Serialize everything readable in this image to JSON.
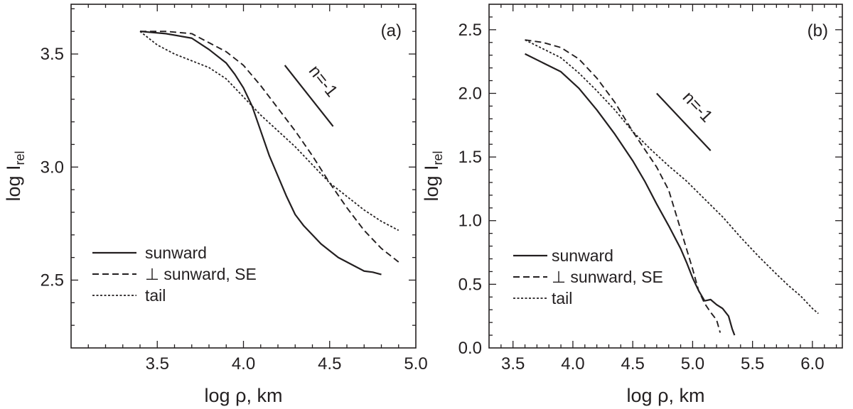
{
  "chart_data": [
    {
      "type": "line",
      "panel_label": "(a)",
      "xlabel": "log ρ, km",
      "ylabel_main": "log I",
      "ylabel_sub": "rel",
      "xlim": [
        3.0,
        5.0
      ],
      "ylim": [
        2.2,
        3.72
      ],
      "xticks": [
        3.5,
        4.0,
        4.5,
        5.0
      ],
      "xtick_labels": [
        "3.5",
        "4.0",
        "4.5",
        "5.0"
      ],
      "yticks": [
        2.5,
        3.0,
        3.5
      ],
      "ytick_labels": [
        "2.5",
        "3.0",
        "3.5"
      ],
      "slope_annotation": {
        "text": "n=-1",
        "line": [
          [
            4.24,
            3.45
          ],
          [
            4.52,
            3.18
          ]
        ]
      },
      "series": [
        {
          "name": "sunward",
          "style": "solid",
          "x": [
            3.4,
            3.55,
            3.7,
            3.8,
            3.9,
            3.95,
            4.0,
            4.05,
            4.1,
            4.15,
            4.2,
            4.25,
            4.3,
            4.35,
            4.4,
            4.45,
            4.5,
            4.55,
            4.6,
            4.65,
            4.7,
            4.75,
            4.8
          ],
          "y": [
            3.6,
            3.59,
            3.57,
            3.52,
            3.46,
            3.41,
            3.35,
            3.27,
            3.16,
            3.05,
            2.96,
            2.87,
            2.79,
            2.74,
            2.7,
            2.66,
            2.63,
            2.6,
            2.58,
            2.56,
            2.54,
            2.535,
            2.525
          ]
        },
        {
          "name": "⊥ sunward, SE",
          "style": "dashed",
          "x": [
            3.4,
            3.55,
            3.7,
            3.8,
            3.9,
            4.0,
            4.1,
            4.2,
            4.3,
            4.4,
            4.5,
            4.6,
            4.7,
            4.8,
            4.9
          ],
          "y": [
            3.6,
            3.6,
            3.59,
            3.55,
            3.51,
            3.45,
            3.36,
            3.26,
            3.16,
            3.05,
            2.93,
            2.82,
            2.72,
            2.64,
            2.58
          ]
        },
        {
          "name": "tail",
          "style": "dotted",
          "x": [
            3.4,
            3.5,
            3.6,
            3.7,
            3.8,
            3.9,
            4.0,
            4.1,
            4.2,
            4.3,
            4.4,
            4.5,
            4.6,
            4.7,
            4.8,
            4.9
          ],
          "y": [
            3.6,
            3.54,
            3.5,
            3.47,
            3.44,
            3.39,
            3.31,
            3.23,
            3.16,
            3.09,
            3.01,
            2.93,
            2.87,
            2.81,
            2.76,
            2.72
          ]
        }
      ]
    },
    {
      "type": "line",
      "panel_label": "(b)",
      "xlabel": "log ρ, km",
      "ylabel_main": "log I",
      "ylabel_sub": "rel",
      "xlim": [
        3.3,
        6.25
      ],
      "ylim": [
        0.0,
        2.7
      ],
      "xticks": [
        3.5,
        4.0,
        4.5,
        5.0,
        5.5,
        6.0
      ],
      "xtick_labels": [
        "3.5",
        "4.0",
        "4.5",
        "5.0",
        "5.5",
        "6.0"
      ],
      "yticks": [
        0.0,
        0.5,
        1.0,
        1.5,
        2.0,
        2.5
      ],
      "ytick_labels": [
        "0.0",
        "0.5",
        "1.0",
        "1.5",
        "2.0",
        "2.5"
      ],
      "slope_annotation": {
        "text": "n=-1",
        "line": [
          [
            4.7,
            2.0
          ],
          [
            5.15,
            1.55
          ]
        ]
      },
      "series": [
        {
          "name": "sunward",
          "style": "solid",
          "x": [
            3.6,
            3.75,
            3.9,
            4.05,
            4.2,
            4.35,
            4.5,
            4.6,
            4.7,
            4.8,
            4.9,
            4.95,
            5.0,
            5.05,
            5.1,
            5.15,
            5.2,
            5.25,
            5.3,
            5.33,
            5.35
          ],
          "y": [
            2.31,
            2.24,
            2.17,
            2.04,
            1.87,
            1.68,
            1.47,
            1.31,
            1.13,
            0.96,
            0.78,
            0.67,
            0.55,
            0.45,
            0.37,
            0.38,
            0.34,
            0.31,
            0.25,
            0.15,
            0.1
          ]
        },
        {
          "name": "⊥ sunward, SE",
          "style": "dashed",
          "x": [
            3.6,
            3.75,
            3.9,
            4.05,
            4.2,
            4.35,
            4.5,
            4.6,
            4.7,
            4.8,
            4.9,
            5.0,
            5.05,
            5.1,
            5.15,
            5.2,
            5.23
          ],
          "y": [
            2.42,
            2.4,
            2.36,
            2.27,
            2.12,
            1.93,
            1.7,
            1.56,
            1.42,
            1.24,
            0.93,
            0.62,
            0.45,
            0.35,
            0.28,
            0.22,
            0.12
          ]
        },
        {
          "name": "tail",
          "style": "dotted",
          "x": [
            3.6,
            3.75,
            3.9,
            4.05,
            4.2,
            4.35,
            4.5,
            4.65,
            4.8,
            4.95,
            5.1,
            5.25,
            5.4,
            5.55,
            5.7,
            5.8,
            5.9,
            5.95,
            6.0,
            6.05
          ],
          "y": [
            2.42,
            2.35,
            2.28,
            2.16,
            2.02,
            1.87,
            1.7,
            1.56,
            1.43,
            1.31,
            1.17,
            1.03,
            0.87,
            0.72,
            0.58,
            0.49,
            0.41,
            0.36,
            0.31,
            0.27
          ]
        }
      ]
    }
  ]
}
